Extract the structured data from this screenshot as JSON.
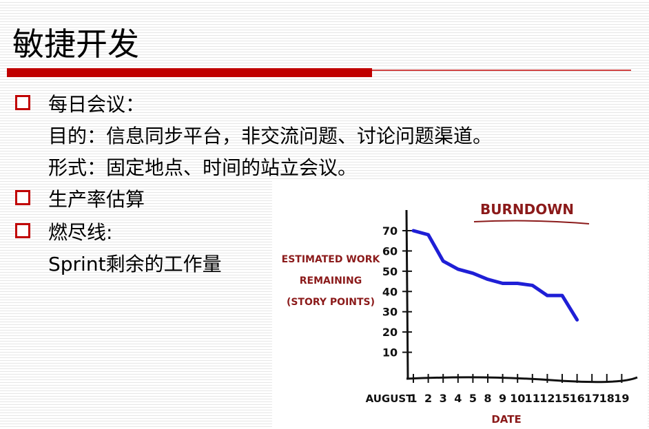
{
  "header": {
    "title": "敏捷开发"
  },
  "items": [
    {
      "text": "每日会议：",
      "lines": [
        "目的：信息同步平台，非交流问题、讨论问题渠道。",
        "形式：固定地点、时间的站立会议。"
      ]
    },
    {
      "text": "生产率估算",
      "lines": []
    },
    {
      "text": "燃尽线:",
      "lines": [
        "Sprint剩余的工作量"
      ]
    }
  ],
  "chart_data": {
    "type": "line",
    "title": "BURNDOWN",
    "y_label": [
      "ESTIMATED WORK",
      "REMAINING",
      "(STORY POINTS)"
    ],
    "x_label": "DATE",
    "x_prefix": "AUGUST",
    "categories": [
      "1",
      "2",
      "3",
      "4",
      "5",
      "8",
      "9",
      "10",
      "11",
      "12",
      "15",
      "16",
      "17",
      "18",
      "19"
    ],
    "values": [
      70,
      68,
      55,
      51,
      49,
      46,
      44,
      44,
      43,
      38,
      38,
      26,
      null,
      null,
      null
    ],
    "color": "#1f1fd6",
    "ideal": [
      70,
      null,
      null,
      null,
      null,
      null,
      null,
      null,
      null,
      null,
      null,
      null,
      null,
      null,
      0
    ],
    "ylim": [
      0,
      70
    ],
    "yticks": [
      10,
      20,
      30,
      40,
      50,
      60,
      70
    ]
  }
}
